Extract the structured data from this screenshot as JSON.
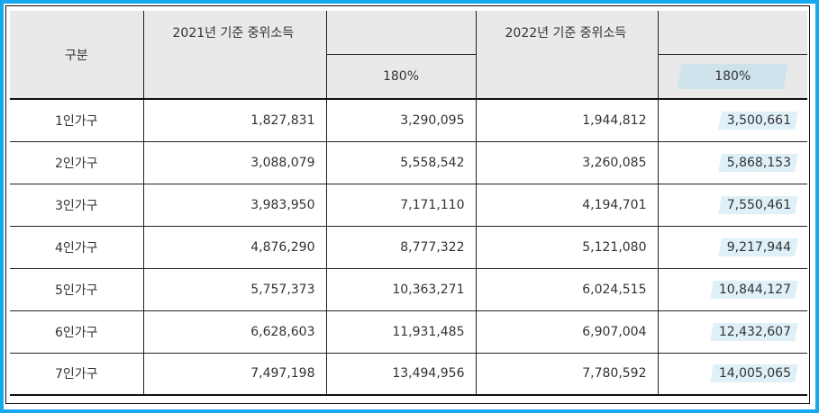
{
  "header": {
    "category": "구분",
    "year2021": "2021년 기준 중위소득",
    "year2022": "2022년 기준 중위소득",
    "sub2021": "180%",
    "sub2022": "180%"
  },
  "rows": [
    {
      "label": "1인가구",
      "median2021": "1,827,831",
      "pct2021": "3,290,095",
      "median2022": "1,944,812",
      "pct2022": "3,500,661"
    },
    {
      "label": "2인가구",
      "median2021": "3,088,079",
      "pct2021": "5,558,542",
      "median2022": "3,260,085",
      "pct2022": "5,868,153"
    },
    {
      "label": "3인가구",
      "median2021": "3,983,950",
      "pct2021": "7,171,110",
      "median2022": "4,194,701",
      "pct2022": "7,550,461"
    },
    {
      "label": "4인가구",
      "median2021": "4,876,290",
      "pct2021": "8,777,322",
      "median2022": "5,121,080",
      "pct2022": "9,217,944"
    },
    {
      "label": "5인가구",
      "median2021": "5,757,373",
      "pct2021": "10,363,271",
      "median2022": "6,024,515",
      "pct2022": "10,844,127"
    },
    {
      "label": "6인가구",
      "median2021": "6,628,603",
      "pct2021": "11,931,485",
      "median2022": "6,907,004",
      "pct2022": "12,432,607"
    },
    {
      "label": "7인가구",
      "median2021": "7,497,198",
      "pct2021": "13,494,956",
      "median2022": "7,780,592",
      "pct2022": "14,005,065"
    }
  ],
  "colors": {
    "frame": "#14a8ee",
    "header_bg": "#e9e9e9",
    "highlight": "#dff0f8",
    "highlight_head": "#cfe3ec"
  }
}
